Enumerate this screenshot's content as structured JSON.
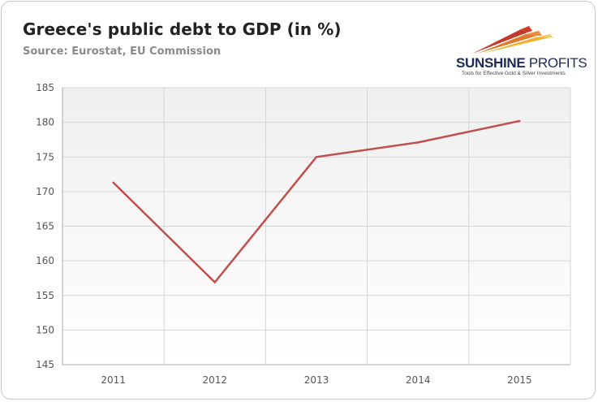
{
  "header": {
    "title": "Greece's public debt to GDP (in %)",
    "source": "Source: Eurostat, EU Commission"
  },
  "logo": {
    "name_bold": "SUNSHINE",
    "name_thin": " PROFITS",
    "tagline": "Tools for Effective Gold & Silver Investments"
  },
  "chart_data": {
    "type": "line",
    "title": "Greece's public debt to GDP (in %)",
    "subtitle": "Source: Eurostat, EU Commission",
    "categories": [
      "2011",
      "2012",
      "2013",
      "2014",
      "2015"
    ],
    "series": [
      {
        "values": [
          171.3,
          156.9,
          175.0,
          177.1,
          180.2
        ],
        "color": "#c0504d"
      }
    ],
    "ylim": [
      145,
      185
    ],
    "yticks": [
      145,
      150,
      155,
      160,
      165,
      170,
      175,
      180,
      185
    ],
    "xlabel": "",
    "ylabel": "",
    "grid": true,
    "legend": "none",
    "colors": {
      "line": "#c0504d",
      "grid": "#d6d6d6",
      "plot_top": "#efefef",
      "plot_bottom": "#ffffff"
    }
  }
}
